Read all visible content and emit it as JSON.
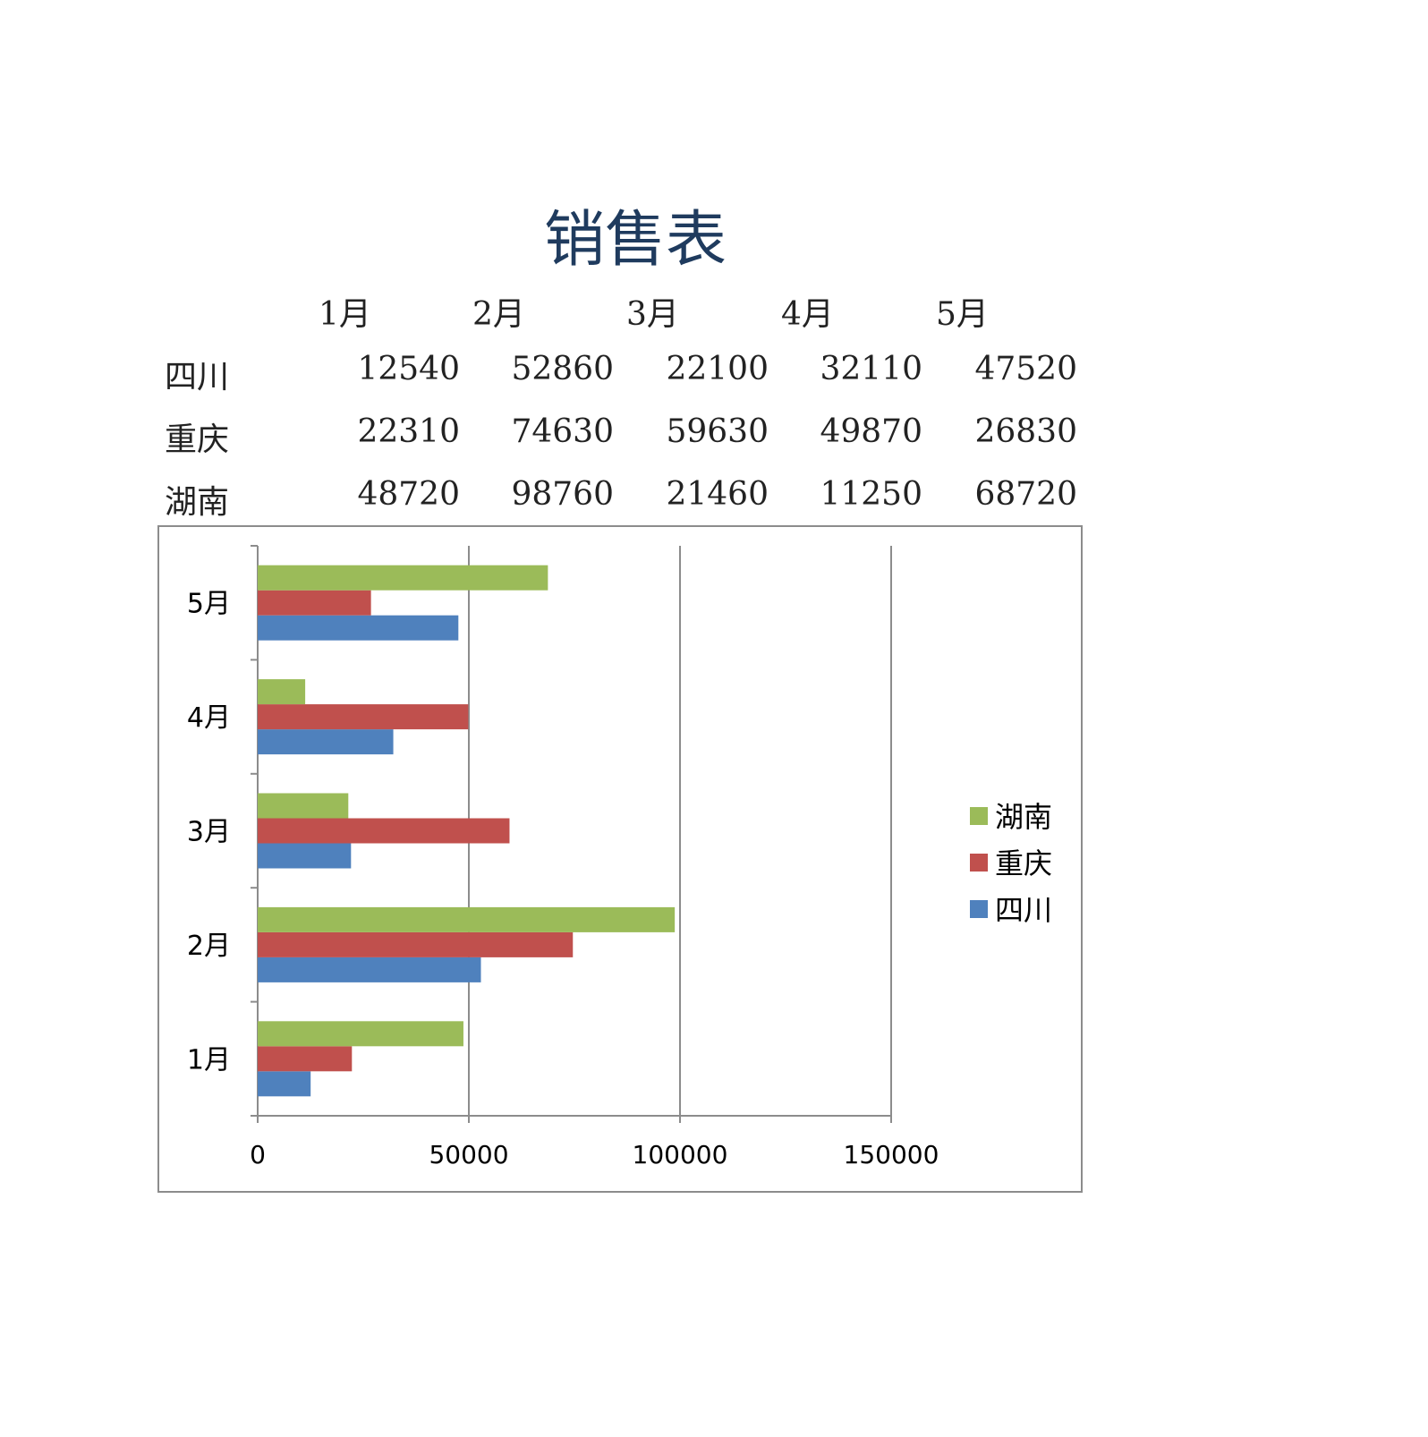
{
  "title": "销售表",
  "table": {
    "months": [
      "1月",
      "2月",
      "3月",
      "4月",
      "5月"
    ],
    "rows": [
      {
        "name": "四川",
        "values": [
          "12540",
          "52860",
          "22100",
          "32110",
          "47520"
        ]
      },
      {
        "name": "重庆",
        "values": [
          "22310",
          "74630",
          "59630",
          "49870",
          "26830"
        ]
      },
      {
        "name": "湖南",
        "values": [
          "48720",
          "98760",
          "21460",
          "11250",
          "68720"
        ]
      }
    ]
  },
  "chart_data": {
    "type": "bar",
    "orientation": "horizontal",
    "categories": [
      "1月",
      "2月",
      "3月",
      "4月",
      "5月"
    ],
    "series": [
      {
        "name": "四川",
        "color": "#4f81bd",
        "values": [
          12540,
          52860,
          22100,
          32110,
          47520
        ]
      },
      {
        "name": "重庆",
        "color": "#c0504d",
        "values": [
          22310,
          74630,
          59630,
          49870,
          26830
        ]
      },
      {
        "name": "湖南",
        "color": "#9bbb59",
        "values": [
          48720,
          98760,
          21460,
          11250,
          68720
        ]
      }
    ],
    "xlim": [
      0,
      150000
    ],
    "xticks": [
      "0",
      "50000",
      "100000",
      "150000"
    ],
    "grid": "vertical",
    "legend": {
      "placement": "right",
      "entries": [
        {
          "label": "湖南",
          "color": "#9bbb59"
        },
        {
          "label": "重庆",
          "color": "#c0504d"
        },
        {
          "label": "四川",
          "color": "#4f81bd"
        }
      ]
    }
  }
}
